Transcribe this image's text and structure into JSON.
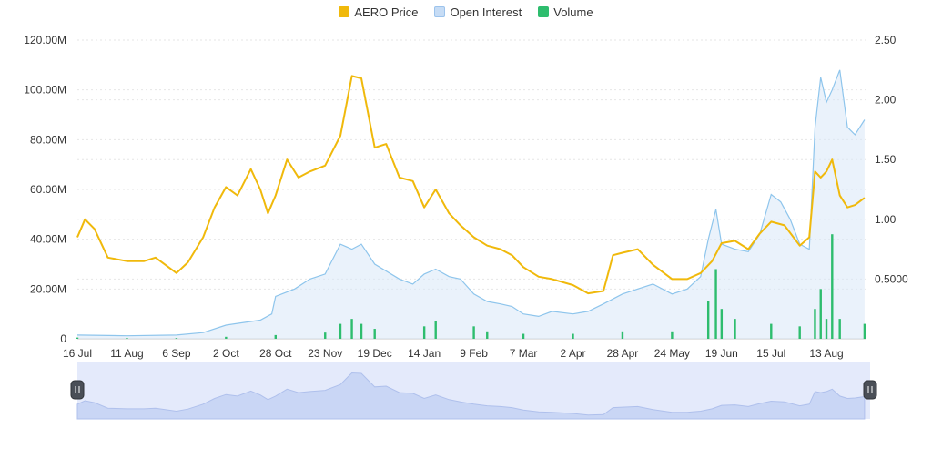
{
  "legend": {
    "price_label": "AERO Price",
    "oi_label": "Open Interest",
    "volume_label": "Volume"
  },
  "colors": {
    "price": "#F0B90B",
    "open_interest_line": "#8EC5EC",
    "open_interest_fill": "#D8E8F8",
    "volume": "#2EBD6E",
    "navigator_fill": "#C9D6F5",
    "navigator_bg": "#E4EAFB"
  },
  "chart_data": {
    "type": "line",
    "x_tick_labels": [
      "16 Jul",
      "11 Aug",
      "6 Sep",
      "2 Oct",
      "28 Oct",
      "23 Nov",
      "19 Dec",
      "14 Jan",
      "9 Feb",
      "7 Mar",
      "2 Apr",
      "28 Apr",
      "24 May",
      "19 Jun",
      "15 Jul",
      "13 Aug"
    ],
    "y_left": {
      "ticks": [
        "0",
        "20.00M",
        "40.00M",
        "60.00M",
        "80.00M",
        "100.00M",
        "120.00M"
      ],
      "range": [
        0,
        120000000
      ]
    },
    "y_right": {
      "ticks": [
        "0.5000",
        "1.00",
        "1.50",
        "2.00",
        "2.50"
      ],
      "range": [
        0,
        2.5
      ]
    },
    "series": [
      {
        "name": "AERO Price",
        "axis": "right",
        "points": [
          [
            "16 Jul",
            0.85
          ],
          [
            "20 Jul",
            1.0
          ],
          [
            "25 Jul",
            0.92
          ],
          [
            "1 Aug",
            0.68
          ],
          [
            "11 Aug",
            0.65
          ],
          [
            "20 Aug",
            0.65
          ],
          [
            "26 Aug",
            0.68
          ],
          [
            "6 Sep",
            0.55
          ],
          [
            "12 Sep",
            0.64
          ],
          [
            "20 Sep",
            0.85
          ],
          [
            "26 Sep",
            1.1
          ],
          [
            "2 Oct",
            1.27
          ],
          [
            "8 Oct",
            1.2
          ],
          [
            "15 Oct",
            1.42
          ],
          [
            "20 Oct",
            1.25
          ],
          [
            "24 Oct",
            1.05
          ],
          [
            "28 Oct",
            1.2
          ],
          [
            "3 Nov",
            1.5
          ],
          [
            "9 Nov",
            1.35
          ],
          [
            "15 Nov",
            1.4
          ],
          [
            "23 Nov",
            1.45
          ],
          [
            "1 Dec",
            1.7
          ],
          [
            "7 Dec",
            2.2
          ],
          [
            "12 Dec",
            2.18
          ],
          [
            "19 Dec",
            1.6
          ],
          [
            "25 Dec",
            1.63
          ],
          [
            "1 Jan",
            1.35
          ],
          [
            "8 Jan",
            1.32
          ],
          [
            "14 Jan",
            1.1
          ],
          [
            "20 Jan",
            1.25
          ],
          [
            "27 Jan",
            1.05
          ],
          [
            "2 Feb",
            0.95
          ],
          [
            "9 Feb",
            0.85
          ],
          [
            "16 Feb",
            0.78
          ],
          [
            "23 Feb",
            0.75
          ],
          [
            "1 Mar",
            0.7
          ],
          [
            "7 Mar",
            0.6
          ],
          [
            "15 Mar",
            0.52
          ],
          [
            "22 Mar",
            0.5
          ],
          [
            "2 Apr",
            0.45
          ],
          [
            "10 Apr",
            0.38
          ],
          [
            "18 Apr",
            0.4
          ],
          [
            "23 Apr",
            0.7
          ],
          [
            "28 Apr",
            0.72
          ],
          [
            "6 May",
            0.75
          ],
          [
            "14 May",
            0.62
          ],
          [
            "24 May",
            0.5
          ],
          [
            "1 Jun",
            0.5
          ],
          [
            "8 Jun",
            0.55
          ],
          [
            "14 Jun",
            0.65
          ],
          [
            "19 Jun",
            0.8
          ],
          [
            "26 Jun",
            0.82
          ],
          [
            "3 Jul",
            0.75
          ],
          [
            "9 Jul",
            0.88
          ],
          [
            "15 Jul",
            0.98
          ],
          [
            "22 Jul",
            0.95
          ],
          [
            "30 Jul",
            0.78
          ],
          [
            "4 Aug",
            0.85
          ],
          [
            "7 Aug",
            1.4
          ],
          [
            "10 Aug",
            1.35
          ],
          [
            "13 Aug",
            1.4
          ],
          [
            "16 Aug",
            1.5
          ],
          [
            "20 Aug",
            1.2
          ],
          [
            "24 Aug",
            1.1
          ],
          [
            "28 Aug",
            1.12
          ],
          [
            "2 Sep",
            1.18
          ]
        ]
      },
      {
        "name": "Open Interest",
        "axis": "left",
        "points": [
          [
            "16 Jul",
            1500000
          ],
          [
            "11 Aug",
            1200000
          ],
          [
            "6 Sep",
            1500000
          ],
          [
            "20 Sep",
            2500000
          ],
          [
            "2 Oct",
            5500000
          ],
          [
            "20 Oct",
            7500000
          ],
          [
            "26 Oct",
            10000000
          ],
          [
            "28 Oct",
            17000000
          ],
          [
            "7 Nov",
            20000000
          ],
          [
            "15 Nov",
            24000000
          ],
          [
            "23 Nov",
            26000000
          ],
          [
            "1 Dec",
            38000000
          ],
          [
            "7 Dec",
            36000000
          ],
          [
            "12 Dec",
            38000000
          ],
          [
            "19 Dec",
            30000000
          ],
          [
            "1 Jan",
            24000000
          ],
          [
            "8 Jan",
            22000000
          ],
          [
            "14 Jan",
            26000000
          ],
          [
            "20 Jan",
            28000000
          ],
          [
            "27 Jan",
            25000000
          ],
          [
            "2 Feb",
            24000000
          ],
          [
            "9 Feb",
            18000000
          ],
          [
            "16 Feb",
            15000000
          ],
          [
            "23 Feb",
            14000000
          ],
          [
            "1 Mar",
            13000000
          ],
          [
            "7 Mar",
            10000000
          ],
          [
            "15 Mar",
            9000000
          ],
          [
            "22 Mar",
            11000000
          ],
          [
            "2 Apr",
            10000000
          ],
          [
            "10 Apr",
            11000000
          ],
          [
            "18 Apr",
            14000000
          ],
          [
            "28 Apr",
            18000000
          ],
          [
            "6 May",
            20000000
          ],
          [
            "14 May",
            22000000
          ],
          [
            "24 May",
            18000000
          ],
          [
            "1 Jun",
            20000000
          ],
          [
            "8 Jun",
            25000000
          ],
          [
            "12 Jun",
            40000000
          ],
          [
            "16 Jun",
            52000000
          ],
          [
            "19 Jun",
            38000000
          ],
          [
            "26 Jun",
            36000000
          ],
          [
            "3 Jul",
            35000000
          ],
          [
            "9 Jul",
            42000000
          ],
          [
            "15 Jul",
            58000000
          ],
          [
            "20 Jul",
            55000000
          ],
          [
            "25 Jul",
            48000000
          ],
          [
            "30 Jul",
            38000000
          ],
          [
            "4 Aug",
            36000000
          ],
          [
            "7 Aug",
            85000000
          ],
          [
            "10 Aug",
            105000000
          ],
          [
            "13 Aug",
            95000000
          ],
          [
            "16 Aug",
            100000000
          ],
          [
            "20 Aug",
            108000000
          ],
          [
            "24 Aug",
            85000000
          ],
          [
            "28 Aug",
            82000000
          ],
          [
            "2 Sep",
            88000000
          ]
        ]
      },
      {
        "name": "Volume",
        "axis": "left",
        "type": "bar",
        "points": [
          [
            "16 Jul",
            500000
          ],
          [
            "11 Aug",
            300000
          ],
          [
            "6 Sep",
            300000
          ],
          [
            "2 Oct",
            800000
          ],
          [
            "28 Oct",
            1500000
          ],
          [
            "23 Nov",
            2500000
          ],
          [
            "1 Dec",
            6000000
          ],
          [
            "7 Dec",
            8000000
          ],
          [
            "12 Dec",
            6000000
          ],
          [
            "19 Dec",
            4000000
          ],
          [
            "14 Jan",
            5000000
          ],
          [
            "20 Jan",
            7000000
          ],
          [
            "9 Feb",
            5000000
          ],
          [
            "16 Feb",
            3000000
          ],
          [
            "7 Mar",
            2000000
          ],
          [
            "2 Apr",
            2000000
          ],
          [
            "28 Apr",
            3000000
          ],
          [
            "24 May",
            3000000
          ],
          [
            "12 Jun",
            15000000
          ],
          [
            "16 Jun",
            28000000
          ],
          [
            "19 Jun",
            12000000
          ],
          [
            "26 Jun",
            8000000
          ],
          [
            "15 Jul",
            6000000
          ],
          [
            "30 Jul",
            5000000
          ],
          [
            "7 Aug",
            12000000
          ],
          [
            "10 Aug",
            20000000
          ],
          [
            "13 Aug",
            8000000
          ],
          [
            "16 Aug",
            42000000
          ],
          [
            "20 Aug",
            8000000
          ],
          [
            "2 Sep",
            6000000
          ]
        ]
      }
    ]
  }
}
